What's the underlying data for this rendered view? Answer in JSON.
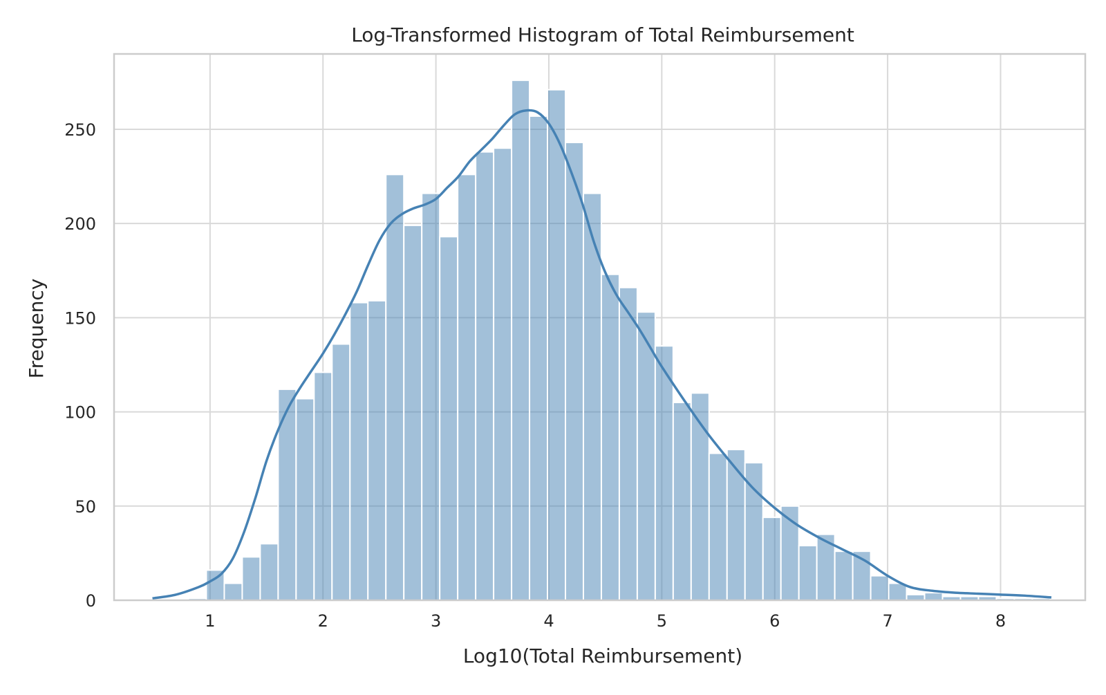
{
  "chart_data": {
    "type": "bar",
    "title": "Log-Transformed Histogram of Total Reimbursement",
    "xlabel": "Log10(Total Reimbursement)",
    "ylabel": "Frequency",
    "xlim": [
      0.15,
      8.75
    ],
    "ylim": [
      0,
      290
    ],
    "xticks": [
      1,
      2,
      3,
      4,
      5,
      6,
      7,
      8
    ],
    "yticks": [
      0,
      50,
      100,
      150,
      200,
      250
    ],
    "grid": true,
    "legend": "none",
    "colors": {
      "bar": "#4682b4",
      "bar_opacity": 0.5,
      "kde_line": "#4682b4",
      "grid": "#d9d9d9",
      "frame": "#cccccc",
      "bar_edge": "#ffffff"
    },
    "bins": {
      "start": 0.49,
      "width": 0.159,
      "counts": [
        0,
        0,
        1,
        16,
        9,
        23,
        30,
        112,
        107,
        121,
        136,
        158,
        159,
        226,
        199,
        216,
        193,
        226,
        238,
        240,
        276,
        257,
        271,
        243,
        216,
        173,
        166,
        153,
        135,
        105,
        110,
        78,
        80,
        73,
        44,
        50,
        29,
        35,
        26,
        26,
        13,
        9,
        3,
        4,
        2,
        2,
        2,
        1,
        1,
        1
      ]
    },
    "kde": {
      "x": [
        0.49,
        0.7,
        0.9,
        1.0,
        1.1,
        1.2,
        1.3,
        1.4,
        1.5,
        1.6,
        1.7,
        1.8,
        1.9,
        2.0,
        2.1,
        2.2,
        2.3,
        2.4,
        2.5,
        2.6,
        2.7,
        2.8,
        2.9,
        3.0,
        3.1,
        3.2,
        3.3,
        3.4,
        3.5,
        3.6,
        3.7,
        3.8,
        3.9,
        4.0,
        4.1,
        4.2,
        4.3,
        4.4,
        4.5,
        4.6,
        4.7,
        4.8,
        4.9,
        5.0,
        5.2,
        5.4,
        5.6,
        5.8,
        6.0,
        6.2,
        6.4,
        6.6,
        6.8,
        7.0,
        7.2,
        7.4,
        7.6,
        7.8,
        8.0,
        8.2,
        8.45
      ],
      "y": [
        1,
        3,
        7,
        10,
        14,
        22,
        36,
        54,
        74,
        90,
        103,
        113,
        122,
        131,
        141,
        152,
        164,
        178,
        191,
        200,
        205,
        208,
        210,
        213,
        219,
        225,
        233,
        239,
        245,
        252,
        258,
        260,
        259,
        253,
        242,
        227,
        210,
        190,
        174,
        162,
        153,
        144,
        134,
        124,
        106,
        89,
        74,
        60,
        49,
        40,
        33,
        27,
        21,
        13,
        7,
        5,
        4,
        3.5,
        3,
        2.5,
        1.5
      ]
    }
  }
}
